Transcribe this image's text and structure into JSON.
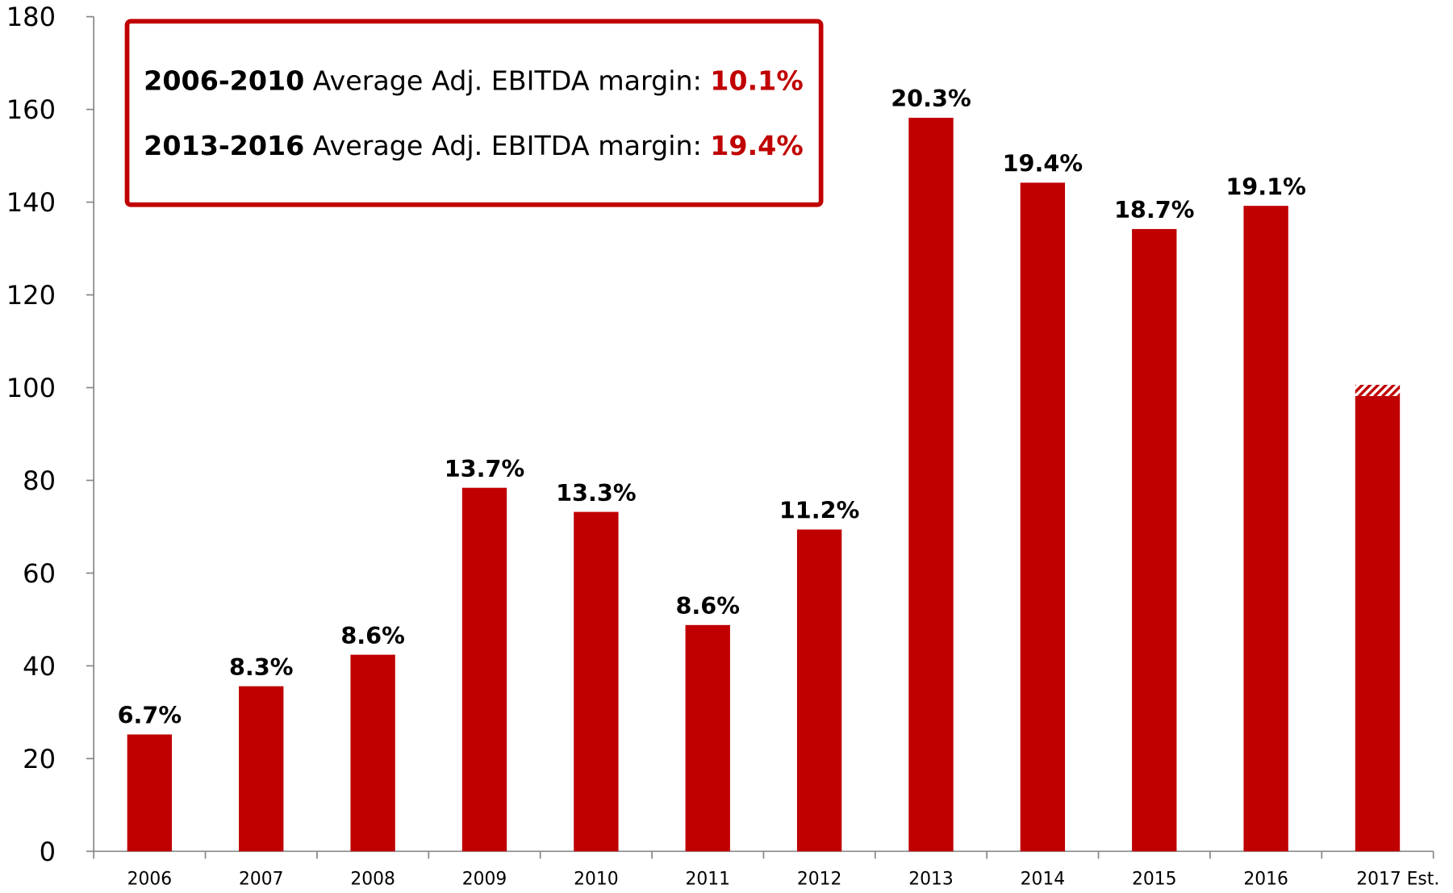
{
  "chart_data": {
    "type": "bar",
    "categories": [
      "2006",
      "2007",
      "2008",
      "2009",
      "2010",
      "2011",
      "2012",
      "2013",
      "2014",
      "2015",
      "2016",
      "2017 Est."
    ],
    "values": [
      25.2,
      35.6,
      42.4,
      78.4,
      73.2,
      48.8,
      69.4,
      158.2,
      144.2,
      134.2,
      139.2,
      98.2
    ],
    "estimate_values": [
      null,
      null,
      null,
      null,
      null,
      null,
      null,
      null,
      null,
      null,
      null,
      2.4
    ],
    "bar_labels": [
      "6.7%",
      "8.3%",
      "8.6%",
      "13.7%",
      "13.3%",
      "8.6%",
      "11.2%",
      "20.3%",
      "19.4%",
      "18.7%",
      "19.1%",
      null
    ],
    "color": "#c00000",
    "ylim": [
      0,
      180
    ],
    "yticks": [
      0,
      20,
      40,
      60,
      80,
      100,
      120,
      140,
      160,
      180
    ],
    "grid": false,
    "annotation_box": {
      "lines": [
        {
          "period": "2006-2010",
          "text": "Average Adj. EBITDA margin:",
          "value": "10.1%"
        },
        {
          "period": "2013-2016",
          "text": "Average Adj. EBITDA margin:",
          "value": "19.4%"
        }
      ]
    }
  }
}
